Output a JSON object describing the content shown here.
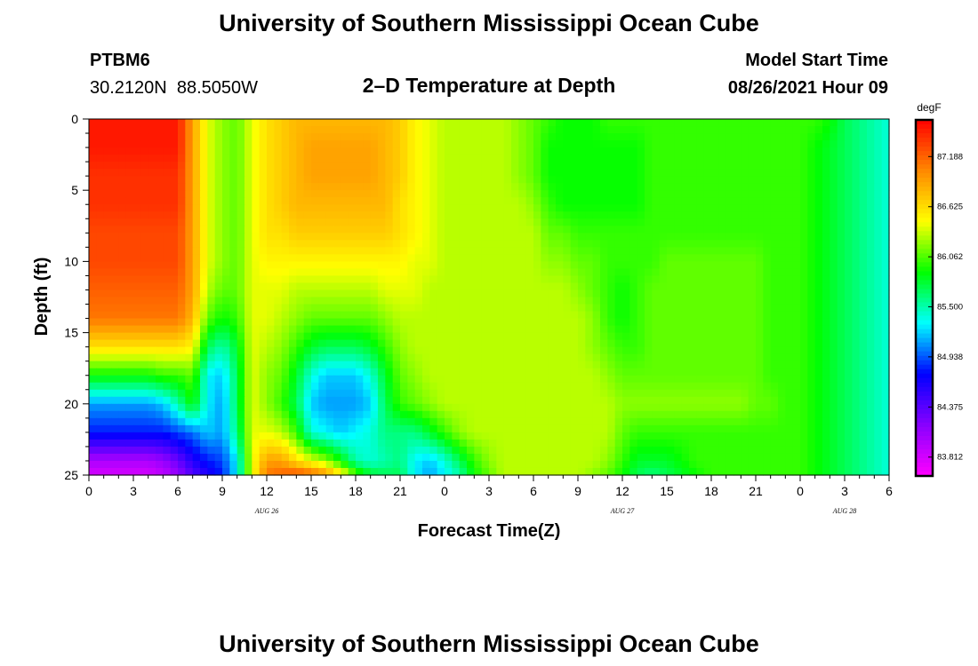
{
  "header": {
    "title": "University of Southern Mississippi Ocean Cube",
    "station_id": "PTBM6",
    "coordinates": "30.2120N  88.5050W",
    "plot_title": "2–D Temperature at Depth",
    "model_label": "Model Start Time",
    "model_time": "08/26/2021 Hour 09"
  },
  "footer": {
    "title": "University of Southern Mississippi Ocean Cube"
  },
  "chart_data": {
    "type": "heatmap",
    "title": "2–D Temperature at Depth",
    "xlabel": "Forecast Time(Z)",
    "ylabel": "Depth (ft)",
    "x_range_hours": [
      0,
      54
    ],
    "x_ticks": [
      {
        "hour": 0,
        "label": "0"
      },
      {
        "hour": 3,
        "label": "3"
      },
      {
        "hour": 6,
        "label": "6"
      },
      {
        "hour": 9,
        "label": "9"
      },
      {
        "hour": 12,
        "label": "12"
      },
      {
        "hour": 15,
        "label": "15"
      },
      {
        "hour": 18,
        "label": "18"
      },
      {
        "hour": 21,
        "label": "21"
      },
      {
        "hour": 24,
        "label": "0"
      },
      {
        "hour": 27,
        "label": "3"
      },
      {
        "hour": 30,
        "label": "6"
      },
      {
        "hour": 33,
        "label": "9"
      },
      {
        "hour": 36,
        "label": "12"
      },
      {
        "hour": 39,
        "label": "15"
      },
      {
        "hour": 42,
        "label": "18"
      },
      {
        "hour": 45,
        "label": "21"
      },
      {
        "hour": 48,
        "label": "0"
      },
      {
        "hour": 51,
        "label": "3"
      },
      {
        "hour": 54,
        "label": "6"
      }
    ],
    "date_labels": [
      {
        "hour": 12,
        "label": "AUG 26"
      },
      {
        "hour": 36,
        "label": "AUG 27"
      },
      {
        "hour": 51,
        "label": "AUG 28"
      }
    ],
    "y_range": [
      0,
      25
    ],
    "y_ticks": [
      0,
      5,
      10,
      15,
      20,
      25
    ],
    "colorbar": {
      "unit": "degF",
      "min": 83.6,
      "max": 87.6,
      "tick_values": [
        83.812,
        84.375,
        84.938,
        85.5,
        86.062,
        86.625,
        87.188
      ],
      "tick_labels": [
        "83.812",
        "84.375",
        "84.938",
        "85.500",
        "86.062",
        "86.625",
        "87.188"
      ],
      "colors": [
        "#ff00ff",
        "#8800ff",
        "#0000ff",
        "#00ffff",
        "#00ff00",
        "#ffff00",
        "#ff8800",
        "#ff0000"
      ]
    },
    "columns_hours": [
      0,
      1,
      2,
      3,
      4,
      5,
      6,
      7,
      8,
      9,
      10,
      11,
      12,
      13,
      14,
      15,
      16,
      17,
      18,
      19,
      20,
      21,
      22,
      23,
      24,
      25,
      26,
      27,
      28,
      29,
      30,
      31,
      32,
      33,
      34,
      35,
      36,
      37,
      38,
      39,
      40,
      41,
      42,
      43,
      44,
      45,
      46,
      47,
      48,
      49,
      50,
      51,
      52,
      53,
      54
    ],
    "depths_ft": [
      0,
      2,
      4,
      6,
      8,
      10,
      12,
      14,
      16,
      18,
      20,
      22,
      24,
      25
    ],
    "temperature_degF": [
      [
        87.5,
        87.5,
        87.5,
        87.5,
        87.5,
        87.5,
        87.5,
        86.9,
        86.4,
        86.2,
        86.1,
        86.4,
        86.6,
        86.7,
        86.8,
        86.8,
        86.8,
        86.8,
        86.8,
        86.8,
        86.8,
        86.7,
        86.5,
        86.4,
        86.3,
        86.3,
        86.3,
        86.3,
        86.3,
        86.2,
        86.1,
        86.0,
        85.9,
        85.9,
        85.9,
        86.0,
        86.0,
        86.0,
        86.0,
        86.0,
        86.0,
        86.0,
        86.0,
        86.0,
        86.0,
        86.0,
        86.0,
        86.0,
        86.0,
        86.0,
        85.9,
        85.7,
        85.6,
        85.5,
        85.4
      ],
      [
        87.5,
        87.5,
        87.5,
        87.5,
        87.5,
        87.5,
        87.5,
        86.9,
        86.4,
        86.2,
        86.1,
        86.4,
        86.6,
        86.7,
        86.8,
        86.9,
        86.9,
        86.9,
        86.9,
        86.9,
        86.8,
        86.7,
        86.5,
        86.4,
        86.3,
        86.3,
        86.3,
        86.3,
        86.3,
        86.2,
        86.1,
        85.9,
        85.9,
        85.9,
        85.9,
        85.9,
        85.9,
        85.9,
        86.0,
        86.0,
        86.0,
        86.0,
        86.0,
        86.0,
        86.0,
        86.0,
        86.0,
        86.0,
        86.0,
        85.9,
        85.8,
        85.7,
        85.6,
        85.5,
        85.4
      ],
      [
        87.4,
        87.4,
        87.4,
        87.4,
        87.4,
        87.4,
        87.4,
        86.9,
        86.4,
        86.2,
        86.1,
        86.4,
        86.6,
        86.7,
        86.8,
        86.9,
        86.9,
        86.9,
        86.9,
        86.9,
        86.8,
        86.7,
        86.5,
        86.4,
        86.3,
        86.3,
        86.3,
        86.3,
        86.3,
        86.2,
        86.1,
        85.9,
        85.9,
        85.9,
        85.9,
        85.9,
        85.9,
        85.9,
        86.0,
        86.0,
        86.0,
        86.0,
        86.0,
        86.0,
        86.0,
        86.0,
        86.0,
        86.0,
        86.0,
        85.9,
        85.8,
        85.7,
        85.6,
        85.5,
        85.4
      ],
      [
        87.4,
        87.4,
        87.4,
        87.4,
        87.4,
        87.4,
        87.4,
        86.9,
        86.4,
        86.2,
        86.1,
        86.4,
        86.6,
        86.7,
        86.8,
        86.8,
        86.8,
        86.8,
        86.8,
        86.8,
        86.8,
        86.6,
        86.5,
        86.4,
        86.3,
        86.3,
        86.3,
        86.3,
        86.3,
        86.3,
        86.2,
        86.0,
        85.9,
        85.9,
        85.9,
        85.9,
        85.9,
        85.9,
        86.0,
        86.0,
        86.0,
        86.0,
        86.0,
        86.0,
        86.0,
        86.0,
        86.0,
        86.0,
        86.0,
        85.9,
        85.8,
        85.7,
        85.6,
        85.5,
        85.4
      ],
      [
        87.3,
        87.3,
        87.3,
        87.3,
        87.3,
        87.3,
        87.3,
        86.9,
        86.4,
        86.2,
        86.1,
        86.4,
        86.6,
        86.6,
        86.7,
        86.7,
        86.7,
        86.7,
        86.7,
        86.7,
        86.7,
        86.6,
        86.5,
        86.4,
        86.3,
        86.3,
        86.3,
        86.3,
        86.3,
        86.3,
        86.3,
        86.1,
        86.1,
        86.0,
        86.0,
        86.0,
        86.0,
        86.0,
        86.0,
        86.0,
        86.0,
        86.0,
        86.0,
        86.0,
        86.0,
        86.0,
        86.0,
        86.0,
        86.0,
        85.9,
        85.8,
        85.7,
        85.6,
        85.5,
        85.4
      ],
      [
        87.3,
        87.3,
        87.3,
        87.3,
        87.3,
        87.3,
        87.3,
        86.9,
        86.4,
        86.2,
        86.1,
        86.4,
        86.5,
        86.5,
        86.5,
        86.5,
        86.5,
        86.5,
        86.5,
        86.5,
        86.5,
        86.5,
        86.4,
        86.4,
        86.3,
        86.3,
        86.3,
        86.3,
        86.3,
        86.3,
        86.3,
        86.2,
        86.2,
        86.1,
        86.1,
        86.0,
        86.0,
        86.0,
        86.0,
        86.1,
        86.1,
        86.1,
        86.1,
        86.1,
        86.1,
        86.1,
        86.0,
        86.0,
        86.0,
        85.9,
        85.8,
        85.7,
        85.6,
        85.5,
        85.4
      ],
      [
        87.2,
        87.2,
        87.2,
        87.2,
        87.2,
        87.2,
        87.2,
        86.9,
        86.3,
        86.1,
        86.1,
        86.4,
        86.4,
        86.4,
        86.3,
        86.3,
        86.3,
        86.3,
        86.3,
        86.3,
        86.4,
        86.4,
        86.4,
        86.3,
        86.3,
        86.3,
        86.3,
        86.3,
        86.3,
        86.3,
        86.3,
        86.3,
        86.3,
        86.2,
        86.1,
        86.0,
        85.9,
        86.0,
        86.1,
        86.1,
        86.1,
        86.1,
        86.1,
        86.1,
        86.1,
        86.1,
        86.0,
        86.0,
        86.0,
        85.9,
        85.8,
        85.7,
        85.6,
        85.5,
        85.4
      ],
      [
        87.1,
        87.1,
        87.1,
        87.1,
        87.1,
        87.1,
        87.1,
        86.8,
        86.1,
        85.9,
        86.0,
        86.4,
        86.4,
        86.3,
        86.2,
        86.1,
        86.1,
        86.1,
        86.1,
        86.1,
        86.2,
        86.3,
        86.3,
        86.3,
        86.3,
        86.3,
        86.3,
        86.3,
        86.3,
        86.3,
        86.3,
        86.3,
        86.3,
        86.3,
        86.2,
        86.0,
        85.9,
        86.0,
        86.1,
        86.1,
        86.1,
        86.1,
        86.1,
        86.1,
        86.1,
        86.1,
        86.0,
        86.0,
        86.0,
        85.9,
        85.8,
        85.7,
        85.6,
        85.5,
        85.4
      ],
      [
        86.6,
        86.6,
        86.6,
        86.6,
        86.6,
        86.6,
        86.6,
        86.5,
        85.7,
        85.5,
        85.8,
        86.4,
        86.3,
        86.2,
        86.0,
        85.8,
        85.7,
        85.7,
        85.7,
        85.8,
        86.0,
        86.2,
        86.3,
        86.3,
        86.3,
        86.3,
        86.3,
        86.3,
        86.3,
        86.3,
        86.3,
        86.3,
        86.3,
        86.3,
        86.2,
        86.1,
        86.0,
        86.0,
        86.1,
        86.1,
        86.1,
        86.1,
        86.1,
        86.1,
        86.1,
        86.1,
        86.0,
        86.0,
        86.0,
        85.9,
        85.8,
        85.7,
        85.6,
        85.5,
        85.4
      ],
      [
        85.9,
        85.9,
        85.9,
        85.9,
        85.9,
        86.0,
        86.0,
        86.1,
        85.3,
        85.2,
        85.7,
        86.4,
        86.2,
        86.1,
        85.8,
        85.4,
        85.2,
        85.2,
        85.2,
        85.4,
        85.8,
        86.1,
        86.2,
        86.3,
        86.3,
        86.3,
        86.3,
        86.3,
        86.3,
        86.3,
        86.3,
        86.3,
        86.3,
        86.3,
        86.3,
        86.2,
        86.1,
        86.1,
        86.1,
        86.1,
        86.1,
        86.1,
        86.1,
        86.1,
        86.1,
        86.1,
        86.0,
        86.0,
        86.0,
        85.9,
        85.8,
        85.7,
        85.6,
        85.5,
        85.4
      ],
      [
        85.1,
        85.1,
        85.1,
        85.1,
        85.1,
        85.2,
        85.5,
        85.9,
        85.3,
        85.1,
        85.7,
        86.4,
        86.2,
        86.0,
        85.7,
        85.2,
        85.1,
        85.1,
        85.1,
        85.2,
        85.7,
        86.0,
        86.1,
        86.2,
        86.3,
        86.3,
        86.3,
        86.3,
        86.3,
        86.3,
        86.3,
        86.3,
        86.3,
        86.3,
        86.3,
        86.3,
        86.2,
        86.2,
        86.2,
        86.2,
        86.2,
        86.2,
        86.2,
        86.2,
        86.2,
        86.1,
        86.1,
        86.0,
        86.0,
        85.9,
        85.8,
        85.7,
        85.6,
        85.5,
        85.4
      ],
      [
        84.8,
        84.8,
        84.8,
        84.8,
        84.8,
        84.8,
        84.9,
        85.0,
        85.2,
        85.1,
        85.6,
        86.4,
        86.4,
        86.3,
        86.0,
        85.4,
        85.3,
        85.2,
        85.3,
        85.4,
        85.6,
        85.6,
        85.6,
        85.8,
        86.0,
        86.2,
        86.3,
        86.3,
        86.3,
        86.3,
        86.3,
        86.3,
        86.3,
        86.3,
        86.3,
        86.3,
        86.1,
        86.0,
        86.0,
        86.0,
        86.0,
        86.0,
        86.0,
        86.0,
        86.0,
        86.0,
        86.0,
        86.0,
        86.0,
        85.9,
        85.8,
        85.7,
        85.6,
        85.5,
        85.4
      ],
      [
        84.0,
        84.0,
        84.0,
        84.0,
        84.0,
        84.1,
        84.3,
        84.6,
        84.8,
        84.9,
        85.3,
        86.4,
        86.9,
        86.9,
        86.6,
        86.4,
        86.2,
        85.9,
        85.5,
        85.4,
        85.5,
        85.6,
        85.3,
        85.2,
        85.4,
        85.7,
        86.0,
        86.2,
        86.3,
        86.3,
        86.3,
        86.3,
        86.3,
        86.3,
        86.3,
        86.2,
        86.0,
        85.8,
        85.8,
        85.8,
        85.9,
        86.0,
        86.0,
        86.0,
        86.0,
        86.0,
        86.0,
        86.0,
        86.0,
        85.9,
        85.8,
        85.7,
        85.6,
        85.5,
        85.4
      ],
      [
        83.8,
        83.8,
        83.8,
        83.8,
        83.8,
        83.9,
        84.1,
        84.4,
        84.6,
        84.8,
        85.3,
        86.4,
        87.1,
        87.2,
        87.3,
        87.2,
        87.0,
        86.6,
        86.1,
        85.8,
        85.7,
        85.7,
        85.3,
        85.1,
        85.3,
        85.5,
        85.9,
        86.1,
        86.3,
        86.3,
        86.3,
        86.3,
        86.3,
        86.3,
        86.2,
        86.1,
        85.9,
        85.7,
        85.6,
        85.7,
        85.8,
        85.9,
        86.0,
        86.0,
        86.0,
        86.0,
        86.0,
        86.0,
        86.0,
        85.9,
        85.8,
        85.7,
        85.6,
        85.5,
        85.4
      ]
    ]
  }
}
